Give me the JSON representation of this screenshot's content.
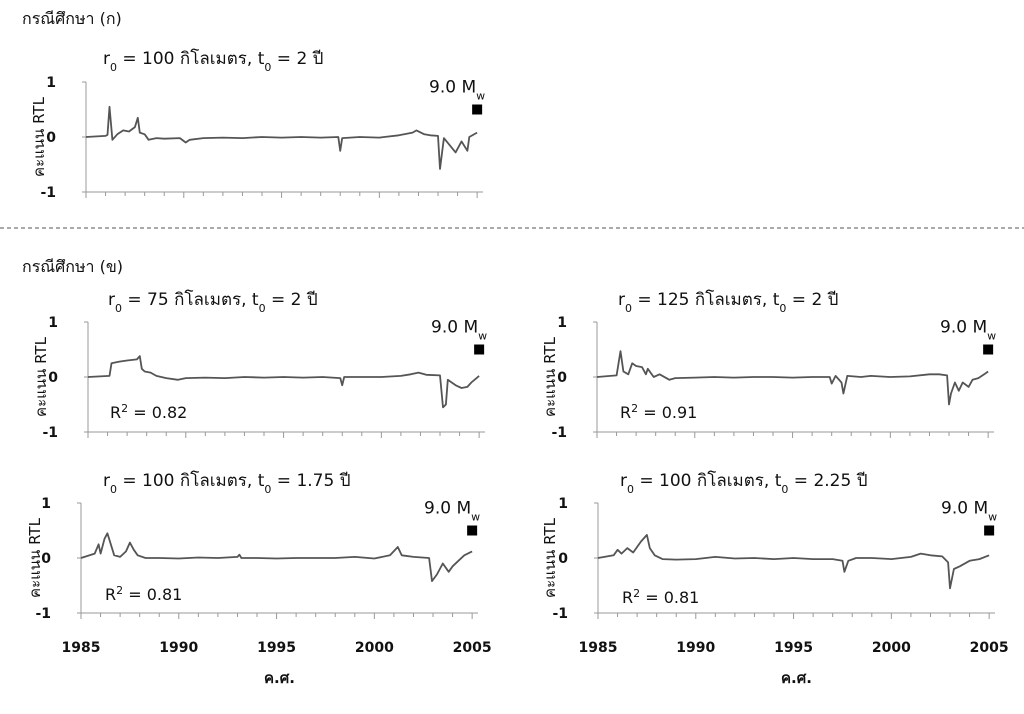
{
  "figure": {
    "section_a": "กรณีศึกษา (ก)",
    "section_b": "กรณีศึกษา (ข)"
  },
  "chart_data": [
    {
      "type": "line",
      "title": "r0 = 100 กิโลเมตร, t0 = 2 ปี",
      "title_parts": {
        "pre": "r",
        "sub0": "0",
        "mid": " = 100 กิโลเมตร, t",
        "sub1": "0",
        "post": " = 2 ปี"
      },
      "ylabel": "คะแนน RTL",
      "xlabel": "",
      "x_ticks": [
        "1985",
        "1990",
        "1995",
        "2000",
        "2005"
      ],
      "y_ticks": [
        "1",
        "0",
        "-1"
      ],
      "show_x_tick_labels": false,
      "xlim": [
        1985,
        2005.3
      ],
      "ylim": [
        -1,
        1
      ],
      "marker": {
        "x": 2005,
        "y": 0.5,
        "label_parts": {
          "pre": "9.0 M",
          "sub": "w"
        }
      },
      "r2": null,
      "series": [
        {
          "points": [
            [
              1985.0,
              0
            ],
            [
              1986.0,
              0.02
            ],
            [
              1986.1,
              0.04
            ],
            [
              1986.2,
              0.55
            ],
            [
              1986.35,
              -0.05
            ],
            [
              1986.6,
              0.05
            ],
            [
              1986.9,
              0.12
            ],
            [
              1987.2,
              0.1
            ],
            [
              1987.5,
              0.18
            ],
            [
              1987.65,
              0.35
            ],
            [
              1987.75,
              0.08
            ],
            [
              1988.0,
              0.05
            ],
            [
              1988.2,
              -0.05
            ],
            [
              1988.6,
              -0.02
            ],
            [
              1989.0,
              -0.03
            ],
            [
              1989.8,
              -0.02
            ],
            [
              1990.1,
              -0.1
            ],
            [
              1990.3,
              -0.05
            ],
            [
              1991,
              -0.02
            ],
            [
              1992,
              -0.01
            ],
            [
              1993,
              -0.02
            ],
            [
              1994,
              0
            ],
            [
              1995,
              -0.01
            ],
            [
              1996,
              0
            ],
            [
              1997,
              -0.01
            ],
            [
              1997.9,
              0
            ],
            [
              1998.0,
              -0.25
            ],
            [
              1998.1,
              -0.02
            ],
            [
              1999,
              0
            ],
            [
              2000,
              -0.01
            ],
            [
              2001,
              0.03
            ],
            [
              2001.7,
              0.08
            ],
            [
              2001.9,
              0.12
            ],
            [
              2002.3,
              0.05
            ],
            [
              2002.6,
              0.03
            ],
            [
              2003.0,
              0.02
            ],
            [
              2003.1,
              -0.58
            ],
            [
              2003.3,
              -0.02
            ],
            [
              2003.6,
              -0.15
            ],
            [
              2003.9,
              -0.28
            ],
            [
              2004.2,
              -0.08
            ],
            [
              2004.5,
              -0.25
            ],
            [
              2004.6,
              0
            ],
            [
              2005.0,
              0.08
            ]
          ]
        }
      ]
    },
    {
      "type": "line",
      "title": "r0 = 75 กิโลเมตร, t0 = 2 ปี",
      "title_parts": {
        "pre": "r",
        "sub0": "0",
        "mid": " = 75 กิโลเมตร, t",
        "sub1": "0",
        "post": " = 2 ปี"
      },
      "ylabel": "คะแนน RTL",
      "xlabel": "",
      "x_ticks": [
        "1985",
        "1990",
        "1995",
        "2000",
        "2005"
      ],
      "y_ticks": [
        "1",
        "0",
        "-1"
      ],
      "show_x_tick_labels": false,
      "xlim": [
        1985,
        2005.3
      ],
      "ylim": [
        -1,
        1
      ],
      "marker": {
        "x": 2005,
        "y": 0.5,
        "label_parts": {
          "pre": "9.0 M",
          "sub": "w"
        }
      },
      "r2": {
        "pre": "R",
        "sup": "2",
        "post": " = 0.82"
      },
      "series": [
        {
          "points": [
            [
              1985.0,
              0
            ],
            [
              1986.1,
              0.02
            ],
            [
              1986.2,
              0.25
            ],
            [
              1986.6,
              0.28
            ],
            [
              1987.0,
              0.3
            ],
            [
              1987.5,
              0.32
            ],
            [
              1987.65,
              0.38
            ],
            [
              1987.75,
              0.15
            ],
            [
              1987.9,
              0.1
            ],
            [
              1988.2,
              0.08
            ],
            [
              1988.5,
              0.02
            ],
            [
              1989.0,
              -0.02
            ],
            [
              1989.6,
              -0.05
            ],
            [
              1990.0,
              -0.02
            ],
            [
              1991,
              -0.01
            ],
            [
              1992,
              -0.02
            ],
            [
              1993,
              0
            ],
            [
              1994,
              -0.01
            ],
            [
              1995,
              0
            ],
            [
              1996,
              -0.01
            ],
            [
              1997.0,
              0
            ],
            [
              1997.9,
              -0.02
            ],
            [
              1998.0,
              -0.15
            ],
            [
              1998.1,
              0
            ],
            [
              1999,
              0
            ],
            [
              2000,
              0
            ],
            [
              2001,
              0.02
            ],
            [
              2001.5,
              0.05
            ],
            [
              2001.9,
              0.08
            ],
            [
              2002.3,
              0.04
            ],
            [
              2003.0,
              0.03
            ],
            [
              2003.15,
              -0.55
            ],
            [
              2003.3,
              -0.5
            ],
            [
              2003.4,
              -0.05
            ],
            [
              2003.8,
              -0.15
            ],
            [
              2004.1,
              -0.2
            ],
            [
              2004.4,
              -0.18
            ],
            [
              2004.6,
              -0.1
            ],
            [
              2005.0,
              0.02
            ]
          ]
        }
      ]
    },
    {
      "type": "line",
      "title": "r0 = 125 กิโลเมตร, t0 = 2 ปี",
      "title_parts": {
        "pre": "r",
        "sub0": "0",
        "mid": " = 125 กิโลเมตร, t",
        "sub1": "0",
        "post": " = 2 ปี"
      },
      "ylabel": "คะแนน RTL",
      "xlabel": "",
      "x_ticks": [
        "1985",
        "1990",
        "1995",
        "2000",
        "2005"
      ],
      "y_ticks": [
        "1",
        "0",
        "-1"
      ],
      "show_x_tick_labels": false,
      "xlim": [
        1985,
        2005.3
      ],
      "ylim": [
        -1,
        1
      ],
      "marker": {
        "x": 2005,
        "y": 0.5,
        "label_parts": {
          "pre": "9.0 M",
          "sub": "w"
        }
      },
      "r2": {
        "pre": "R",
        "sup": "2",
        "post": " = 0.91"
      },
      "series": [
        {
          "points": [
            [
              1985.0,
              0
            ],
            [
              1986.0,
              0.03
            ],
            [
              1986.2,
              0.47
            ],
            [
              1986.35,
              0.1
            ],
            [
              1986.6,
              0.05
            ],
            [
              1986.8,
              0.25
            ],
            [
              1987.0,
              0.2
            ],
            [
              1987.3,
              0.18
            ],
            [
              1987.5,
              0.05
            ],
            [
              1987.6,
              0.15
            ],
            [
              1987.9,
              0.0
            ],
            [
              1988.2,
              0.05
            ],
            [
              1988.7,
              -0.05
            ],
            [
              1989.0,
              -0.02
            ],
            [
              1990,
              -0.01
            ],
            [
              1991,
              0
            ],
            [
              1992,
              -0.01
            ],
            [
              1993,
              0
            ],
            [
              1994,
              0
            ],
            [
              1995,
              -0.01
            ],
            [
              1996,
              0
            ],
            [
              1996.9,
              0
            ],
            [
              1997.0,
              -0.12
            ],
            [
              1997.2,
              0.02
            ],
            [
              1997.5,
              -0.1
            ],
            [
              1997.6,
              -0.3
            ],
            [
              1997.8,
              0.02
            ],
            [
              1998.5,
              0
            ],
            [
              1999,
              0.02
            ],
            [
              2000,
              0
            ],
            [
              2001,
              0.01
            ],
            [
              2002.0,
              0.05
            ],
            [
              2002.5,
              0.05
            ],
            [
              2002.9,
              0.03
            ],
            [
              2003.0,
              -0.5
            ],
            [
              2003.1,
              -0.3
            ],
            [
              2003.3,
              -0.1
            ],
            [
              2003.5,
              -0.25
            ],
            [
              2003.7,
              -0.1
            ],
            [
              2004.0,
              -0.18
            ],
            [
              2004.2,
              -0.05
            ],
            [
              2004.5,
              -0.02
            ],
            [
              2004.8,
              0.05
            ],
            [
              2005.0,
              0.1
            ]
          ]
        }
      ]
    },
    {
      "type": "line",
      "title": "r0 = 100 กิโลเมตร, t0 = 1.75 ปี",
      "title_parts": {
        "pre": "r",
        "sub0": "0",
        "mid": " = 100 กิโลเมตร, t",
        "sub1": "0",
        "post": " = 1.75 ปี"
      },
      "ylabel": "คะแนน RTL",
      "xlabel": "ค.ศ.",
      "x_ticks": [
        "1985",
        "1990",
        "1995",
        "2000",
        "2005"
      ],
      "y_ticks": [
        "1",
        "0",
        "-1"
      ],
      "show_x_tick_labels": true,
      "xlim": [
        1985,
        2005.3
      ],
      "ylim": [
        -1,
        1
      ],
      "marker": {
        "x": 2005,
        "y": 0.5,
        "label_parts": {
          "pre": "9.0 M",
          "sub": "w"
        }
      },
      "r2": {
        "pre": "R",
        "sup": "2",
        "post": " = 0.81"
      },
      "series": [
        {
          "points": [
            [
              1985.0,
              0
            ],
            [
              1985.7,
              0.08
            ],
            [
              1985.9,
              0.25
            ],
            [
              1986.0,
              0.08
            ],
            [
              1986.2,
              0.35
            ],
            [
              1986.35,
              0.45
            ],
            [
              1986.5,
              0.28
            ],
            [
              1986.7,
              0.05
            ],
            [
              1987.0,
              0.02
            ],
            [
              1987.3,
              0.12
            ],
            [
              1987.5,
              0.28
            ],
            [
              1987.7,
              0.15
            ],
            [
              1987.9,
              0.05
            ],
            [
              1988.3,
              0
            ],
            [
              1989,
              0
            ],
            [
              1990,
              -0.01
            ],
            [
              1991,
              0.01
            ],
            [
              1992,
              0
            ],
            [
              1993.0,
              0.02
            ],
            [
              1993.1,
              0.06
            ],
            [
              1993.2,
              0
            ],
            [
              1994,
              0
            ],
            [
              1995,
              -0.01
            ],
            [
              1996,
              0
            ],
            [
              1997,
              0
            ],
            [
              1998,
              0
            ],
            [
              1999,
              0.02
            ],
            [
              2000,
              -0.01
            ],
            [
              2000.8,
              0.05
            ],
            [
              2001.2,
              0.2
            ],
            [
              2001.4,
              0.05
            ],
            [
              2002.0,
              0.02
            ],
            [
              2002.8,
              0.0
            ],
            [
              2002.95,
              -0.42
            ],
            [
              2003.2,
              -0.3
            ],
            [
              2003.5,
              -0.1
            ],
            [
              2003.8,
              -0.25
            ],
            [
              2004.0,
              -0.15
            ],
            [
              2004.3,
              -0.05
            ],
            [
              2004.6,
              0.05
            ],
            [
              2005.0,
              0.12
            ]
          ]
        }
      ]
    },
    {
      "type": "line",
      "title": "r0 = 100 กิโลเมตร, t0 = 2.25 ปี",
      "title_parts": {
        "pre": "r",
        "sub0": "0",
        "mid": " = 100 กิโลเมตร, t",
        "sub1": "0",
        "post": " = 2.25 ปี"
      },
      "ylabel": "คะแนน RTL",
      "xlabel": "ค.ศ.",
      "x_ticks": [
        "1985",
        "1990",
        "1995",
        "2000",
        "2005"
      ],
      "y_ticks": [
        "1",
        "0",
        "-1"
      ],
      "show_x_tick_labels": true,
      "xlim": [
        1985,
        2005.3
      ],
      "ylim": [
        -1,
        1
      ],
      "marker": {
        "x": 2005,
        "y": 0.5,
        "label_parts": {
          "pre": "9.0 M",
          "sub": "w"
        }
      },
      "r2": {
        "pre": "R",
        "sup": "2",
        "post": " = 0.81"
      },
      "series": [
        {
          "points": [
            [
              1985.0,
              0
            ],
            [
              1985.8,
              0.05
            ],
            [
              1986.0,
              0.15
            ],
            [
              1986.2,
              0.08
            ],
            [
              1986.5,
              0.18
            ],
            [
              1986.8,
              0.1
            ],
            [
              1987.2,
              0.3
            ],
            [
              1987.5,
              0.42
            ],
            [
              1987.65,
              0.18
            ],
            [
              1987.9,
              0.05
            ],
            [
              1988.3,
              -0.02
            ],
            [
              1989,
              -0.03
            ],
            [
              1990,
              -0.02
            ],
            [
              1991,
              0.02
            ],
            [
              1992,
              -0.01
            ],
            [
              1993,
              0.0
            ],
            [
              1994,
              -0.02
            ],
            [
              1995,
              0
            ],
            [
              1996,
              -0.02
            ],
            [
              1997.0,
              -0.02
            ],
            [
              1997.5,
              -0.05
            ],
            [
              1997.6,
              -0.25
            ],
            [
              1997.8,
              -0.05
            ],
            [
              1998.2,
              0
            ],
            [
              1999,
              0
            ],
            [
              2000,
              -0.02
            ],
            [
              2001,
              0.02
            ],
            [
              2001.5,
              0.08
            ],
            [
              2002.0,
              0.05
            ],
            [
              2002.6,
              0.03
            ],
            [
              2002.9,
              -0.08
            ],
            [
              2003.0,
              -0.55
            ],
            [
              2003.2,
              -0.2
            ],
            [
              2003.5,
              -0.15
            ],
            [
              2004.0,
              -0.05
            ],
            [
              2004.5,
              -0.02
            ],
            [
              2005.0,
              0.05
            ]
          ]
        }
      ]
    }
  ]
}
